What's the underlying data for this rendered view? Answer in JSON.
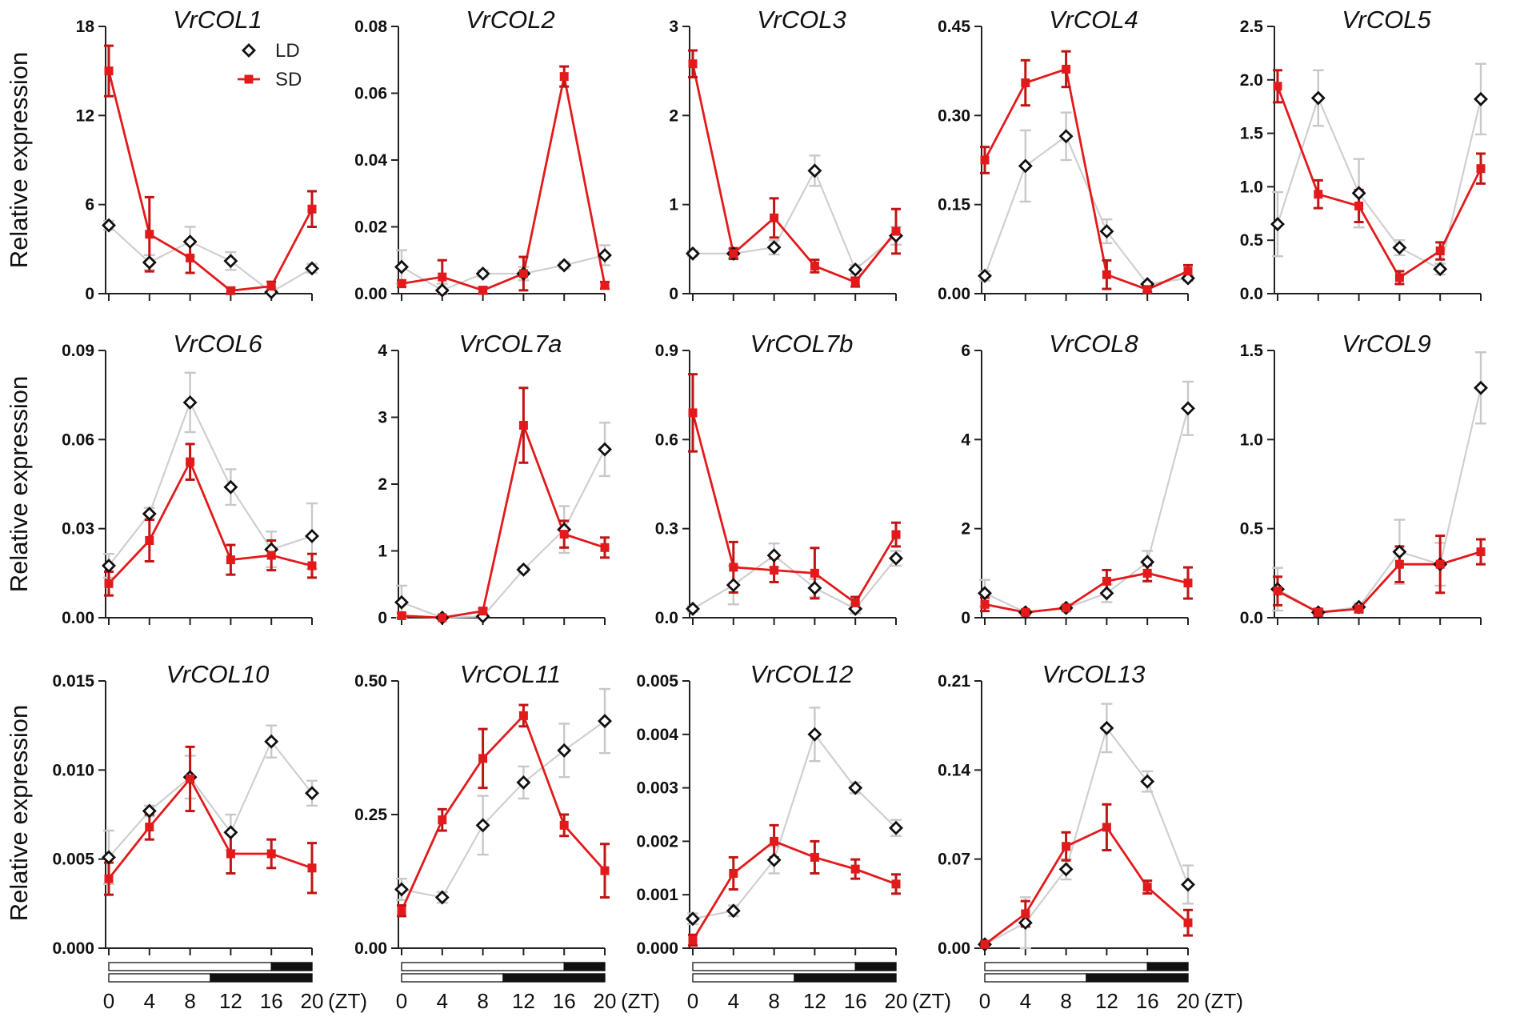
{
  "figure": {
    "ylabel": "Relative expression",
    "xlabel_unit": "(ZT)",
    "legend": [
      {
        "label": "LD",
        "color": "#111111",
        "marker": "diamond-open"
      },
      {
        "label": "SD",
        "color": "#e31a1c",
        "marker": "square-filled"
      }
    ],
    "colors": {
      "LD": "#111111",
      "LD_line": "#cfcfcf",
      "SD": "#e31a1c",
      "SD_err": "#c01515",
      "LD_err": "#c8c8c8"
    },
    "photoperiod_bars": {
      "LD": {
        "light_hours": [
          0,
          16
        ],
        "dark_hours": [
          16,
          24
        ]
      },
      "SD": {
        "light_hours": [
          0,
          10
        ],
        "dark_hours": [
          10,
          24
        ]
      }
    }
  },
  "chart_data": [
    {
      "type": "line",
      "title": "VrCOL1",
      "x": [
        0,
        4,
        8,
        12,
        16,
        20
      ],
      "ylim": [
        0,
        18
      ],
      "yticks": [
        "0",
        "6",
        "12",
        "18"
      ],
      "series": [
        {
          "name": "LD",
          "values": [
            4.6,
            2.1,
            3.5,
            2.2,
            0.1,
            1.7
          ],
          "err": [
            0.3,
            0.5,
            1.0,
            0.6,
            0.3,
            0.3
          ]
        },
        {
          "name": "SD",
          "values": [
            15,
            4,
            2.4,
            0.2,
            0.5,
            5.7
          ],
          "err": [
            1.7,
            2.5,
            1.0,
            0.2,
            0.3,
            1.2
          ]
        }
      ]
    },
    {
      "type": "line",
      "title": "VrCOL2",
      "x": [
        0,
        4,
        8,
        12,
        16,
        20
      ],
      "ylim": [
        0,
        0.08
      ],
      "yticks": [
        "0.00",
        "0.02",
        "0.04",
        "0.06",
        "0.08"
      ],
      "series": [
        {
          "name": "LD",
          "values": [
            0.008,
            0.001,
            0.006,
            0.006,
            0.0085,
            0.0115
          ],
          "err": [
            0.005,
            0.002,
            0.001,
            0.002,
            0.001,
            0.003
          ]
        },
        {
          "name": "SD",
          "values": [
            0.003,
            0.005,
            0.001,
            0.006,
            0.065,
            0.0025
          ],
          "err": [
            0.001,
            0.005,
            0.001,
            0.005,
            0.003,
            0.001
          ]
        }
      ]
    },
    {
      "type": "line",
      "title": "VrCOL3",
      "x": [
        0,
        4,
        8,
        12,
        16,
        20
      ],
      "ylim": [
        0,
        3
      ],
      "yticks": [
        "0",
        "1",
        "2",
        "3"
      ],
      "series": [
        {
          "name": "LD",
          "values": [
            0.45,
            0.45,
            0.52,
            1.38,
            0.27,
            0.65
          ],
          "err": [
            0.03,
            0.05,
            0.08,
            0.17,
            0.05,
            0.1
          ]
        },
        {
          "name": "SD",
          "values": [
            2.58,
            0.45,
            0.85,
            0.31,
            0.13,
            0.7
          ],
          "err": [
            0.15,
            0.06,
            0.22,
            0.07,
            0.05,
            0.25
          ]
        }
      ]
    },
    {
      "type": "line",
      "title": "VrCOL4",
      "x": [
        0,
        4,
        8,
        12,
        16,
        20
      ],
      "ylim": [
        0,
        0.45
      ],
      "yticks": [
        "0.00",
        "0.15",
        "0.30",
        "0.45"
      ],
      "series": [
        {
          "name": "LD",
          "values": [
            0.03,
            0.215,
            0.265,
            0.105,
            0.016,
            0.026
          ],
          "err": [
            0.008,
            0.06,
            0.04,
            0.02,
            0.004,
            0.005
          ]
        },
        {
          "name": "SD",
          "values": [
            0.225,
            0.355,
            0.378,
            0.032,
            0.007,
            0.038
          ],
          "err": [
            0.022,
            0.038,
            0.03,
            0.024,
            0.004,
            0.01
          ]
        }
      ]
    },
    {
      "type": "line",
      "title": "VrCOL5",
      "x": [
        0,
        4,
        8,
        12,
        16,
        20
      ],
      "ylim": [
        0,
        2.5
      ],
      "yticks": [
        "0.0",
        "0.5",
        "1.0",
        "1.5",
        "2.0",
        "2.5"
      ],
      "series": [
        {
          "name": "LD",
          "values": [
            0.65,
            1.83,
            0.94,
            0.43,
            0.23,
            1.82
          ],
          "err": [
            0.3,
            0.26,
            0.32,
            0.07,
            0.05,
            0.33
          ]
        },
        {
          "name": "SD",
          "values": [
            1.94,
            0.93,
            0.82,
            0.15,
            0.4,
            1.17
          ],
          "err": [
            0.15,
            0.13,
            0.15,
            0.06,
            0.08,
            0.14
          ]
        }
      ]
    },
    {
      "type": "line",
      "title": "VrCOL6",
      "x": [
        0,
        4,
        8,
        12,
        16,
        20
      ],
      "ylim": [
        0,
        0.09
      ],
      "yticks": [
        "0.00",
        "0.03",
        "0.06",
        "0.09"
      ],
      "series": [
        {
          "name": "LD",
          "values": [
            0.0175,
            0.035,
            0.0725,
            0.044,
            0.023,
            0.0275
          ],
          "err": [
            0.004,
            0.002,
            0.01,
            0.006,
            0.006,
            0.011
          ]
        },
        {
          "name": "SD",
          "values": [
            0.0115,
            0.026,
            0.0525,
            0.0195,
            0.021,
            0.0175
          ],
          "err": [
            0.004,
            0.007,
            0.006,
            0.005,
            0.005,
            0.004
          ]
        }
      ]
    },
    {
      "type": "line",
      "title": "VrCOL7a",
      "x": [
        0,
        4,
        8,
        12,
        16,
        20
      ],
      "ylim": [
        0,
        4
      ],
      "yticks": [
        "0",
        "1",
        "2",
        "3",
        "4"
      ],
      "series": [
        {
          "name": "LD",
          "values": [
            0.23,
            0,
            0.02,
            0.72,
            1.32,
            2.52
          ],
          "err": [
            0.25,
            0.03,
            0.04,
            0.04,
            0.35,
            0.4
          ]
        },
        {
          "name": "SD",
          "values": [
            0.03,
            0,
            0.1,
            2.88,
            1.25,
            1.05
          ],
          "err": [
            0.04,
            0.02,
            0.04,
            0.56,
            0.2,
            0.15
          ]
        }
      ]
    },
    {
      "type": "line",
      "title": "VrCOL7b",
      "x": [
        0,
        4,
        8,
        12,
        16,
        20
      ],
      "ylim": [
        0,
        0.9
      ],
      "yticks": [
        "0.0",
        "0.3",
        "0.6",
        "0.9"
      ],
      "series": [
        {
          "name": "LD",
          "values": [
            0.03,
            0.11,
            0.21,
            0.1,
            0.03,
            0.2
          ],
          "err": [
            0.01,
            0.065,
            0.04,
            0.03,
            0.015,
            0.025
          ]
        },
        {
          "name": "SD",
          "values": [
            0.69,
            0.17,
            0.16,
            0.15,
            0.05,
            0.28
          ],
          "err": [
            0.13,
            0.085,
            0.04,
            0.085,
            0.02,
            0.04
          ]
        }
      ]
    },
    {
      "type": "line",
      "title": "VrCOL8",
      "x": [
        0,
        4,
        8,
        12,
        16,
        20
      ],
      "ylim": [
        0,
        6
      ],
      "yticks": [
        "0",
        "2",
        "4",
        "6"
      ],
      "series": [
        {
          "name": "LD",
          "values": [
            0.55,
            0.12,
            0.22,
            0.55,
            1.25,
            4.7
          ],
          "err": [
            0.3,
            0.05,
            0.05,
            0.2,
            0.25,
            0.6
          ]
        },
        {
          "name": "SD",
          "values": [
            0.3,
            0.12,
            0.22,
            0.82,
            1.0,
            0.78
          ],
          "err": [
            0.15,
            0.05,
            0.05,
            0.25,
            0.18,
            0.35
          ]
        }
      ]
    },
    {
      "type": "line",
      "title": "VrCOL9",
      "x": [
        0,
        4,
        8,
        12,
        16,
        20
      ],
      "ylim": [
        0,
        1.5
      ],
      "yticks": [
        "0.0",
        "0.5",
        "1.0",
        "1.5"
      ],
      "series": [
        {
          "name": "LD",
          "values": [
            0.16,
            0.03,
            0.06,
            0.37,
            0.3,
            1.29
          ],
          "err": [
            0.12,
            0.02,
            0.02,
            0.18,
            0.12,
            0.2
          ]
        },
        {
          "name": "SD",
          "values": [
            0.15,
            0.03,
            0.05,
            0.3,
            0.3,
            0.37
          ],
          "err": [
            0.08,
            0.02,
            0.02,
            0.1,
            0.16,
            0.07
          ]
        }
      ]
    },
    {
      "type": "line",
      "title": "VrCOL10",
      "x": [
        0,
        4,
        8,
        12,
        16,
        20
      ],
      "ylim": [
        0,
        0.015
      ],
      "yticks": [
        "0.000",
        "0.005",
        "0.010",
        "0.015"
      ],
      "series": [
        {
          "name": "LD",
          "values": [
            0.0051,
            0.0077,
            0.0096,
            0.0065,
            0.0116,
            0.0087
          ],
          "err": [
            0.0015,
            0.0003,
            0.0012,
            0.001,
            0.0009,
            0.0007
          ]
        },
        {
          "name": "SD",
          "values": [
            0.0039,
            0.0068,
            0.0095,
            0.0053,
            0.0053,
            0.0045
          ],
          "err": [
            0.0009,
            0.0007,
            0.0018,
            0.0011,
            0.0008,
            0.0014
          ]
        }
      ]
    },
    {
      "type": "line",
      "title": "VrCOL11",
      "x": [
        0,
        4,
        8,
        12,
        16,
        20
      ],
      "ylim": [
        0,
        0.5
      ],
      "yticks": [
        "0.00",
        "0.25",
        "0.50"
      ],
      "series": [
        {
          "name": "LD",
          "values": [
            0.11,
            0.095,
            0.23,
            0.31,
            0.37,
            0.425
          ],
          "err": [
            0.02,
            0.01,
            0.055,
            0.03,
            0.05,
            0.06
          ]
        },
        {
          "name": "SD",
          "values": [
            0.07,
            0.24,
            0.355,
            0.435,
            0.23,
            0.145
          ],
          "err": [
            0.01,
            0.02,
            0.055,
            0.02,
            0.02,
            0.05
          ]
        }
      ]
    },
    {
      "type": "line",
      "title": "VrCOL12",
      "x": [
        0,
        4,
        8,
        12,
        16,
        20
      ],
      "ylim": [
        0,
        0.005
      ],
      "yticks": [
        "0.000",
        "0.001",
        "0.002",
        "0.003",
        "0.004",
        "0.005"
      ],
      "series": [
        {
          "name": "LD",
          "values": [
            0.00055,
            0.0007,
            0.00165,
            0.004,
            0.003,
            0.00225
          ],
          "err": [
            0.0001,
            0.0001,
            0.00025,
            0.0005,
            0.0001,
            0.00015
          ]
        },
        {
          "name": "SD",
          "values": [
            0.00015,
            0.0014,
            0.002,
            0.0017,
            0.00148,
            0.0012
          ],
          "err": [
            0.0001,
            0.0003,
            0.0003,
            0.0003,
            0.00018,
            0.00018
          ]
        }
      ]
    },
    {
      "type": "line",
      "title": "VrCOL13",
      "x": [
        0,
        4,
        8,
        12,
        16,
        20
      ],
      "ylim": [
        0,
        0.21
      ],
      "yticks": [
        "0.00",
        "0.07",
        "0.14",
        "0.21"
      ],
      "series": [
        {
          "name": "LD",
          "values": [
            0.003,
            0.02,
            0.062,
            0.173,
            0.131,
            0.05
          ],
          "err": [
            0.002,
            0.02,
            0.008,
            0.019,
            0.008,
            0.015
          ]
        },
        {
          "name": "SD",
          "values": [
            0.003,
            0.027,
            0.08,
            0.095,
            0.048,
            0.02
          ],
          "err": [
            0.002,
            0.01,
            0.011,
            0.018,
            0.005,
            0.01
          ]
        }
      ]
    }
  ]
}
